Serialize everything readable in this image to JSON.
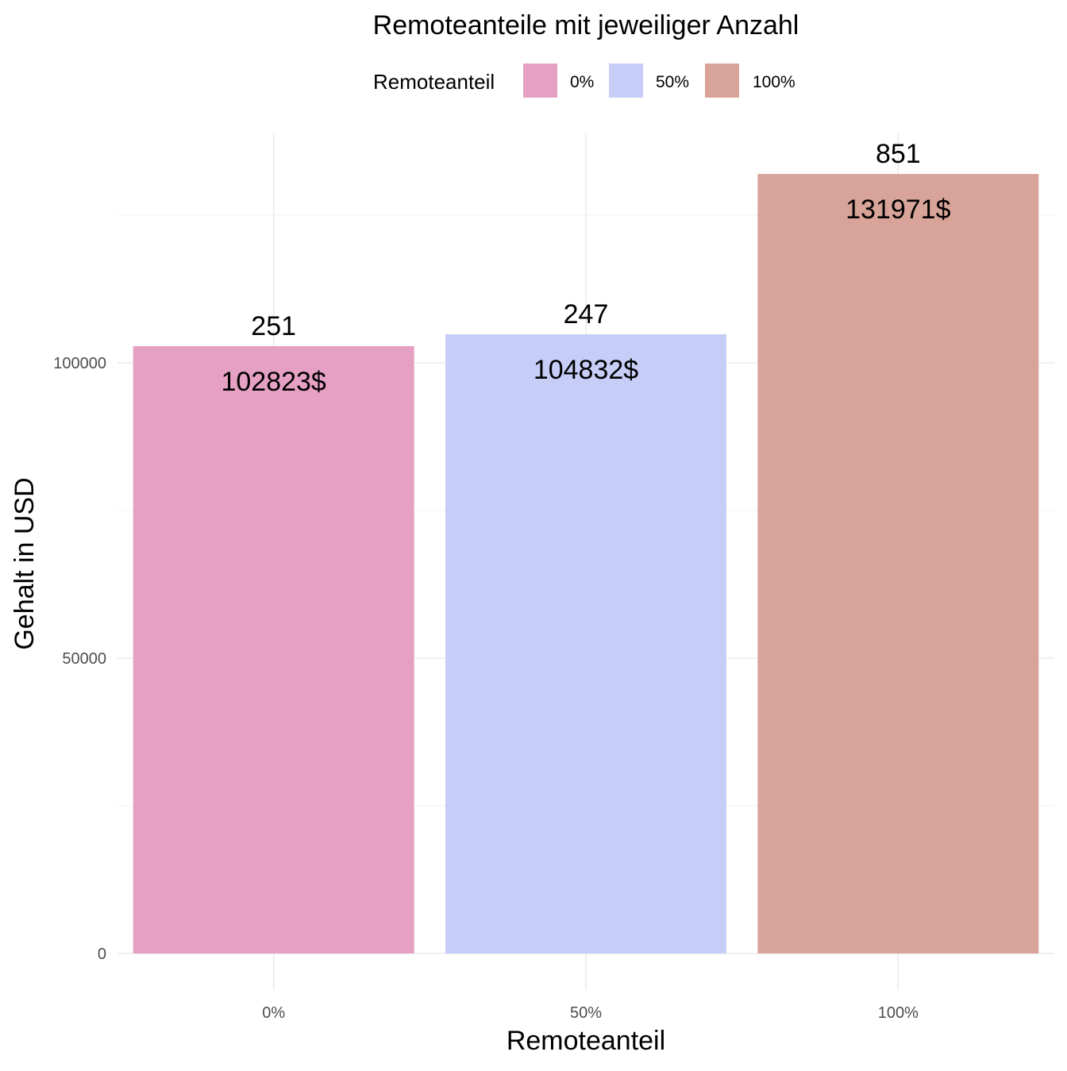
{
  "chart_data": {
    "type": "bar",
    "title": "Remoteanteile mit jeweiliger Anzahl",
    "xlabel": "Remoteanteil",
    "ylabel": "Gehalt in USD",
    "categories": [
      "0%",
      "50%",
      "100%"
    ],
    "values": [
      102823,
      104832,
      131971
    ],
    "value_labels": [
      "102823$",
      "104832$",
      "131971$"
    ],
    "counts": [
      251,
      247,
      851
    ],
    "count_labels": [
      "251",
      "247",
      "851"
    ],
    "colors": [
      "#e6a0c4",
      "#c6cdf7",
      "#d8a499"
    ],
    "ylim": [
      0,
      140000
    ],
    "yticks": [
      0,
      50000,
      100000
    ],
    "ytick_labels": [
      "0",
      "50000",
      "100000"
    ],
    "grid": true,
    "legend": {
      "title": "Remoteanteil",
      "position": "top",
      "entries": [
        "0%",
        "50%",
        "100%"
      ]
    }
  }
}
